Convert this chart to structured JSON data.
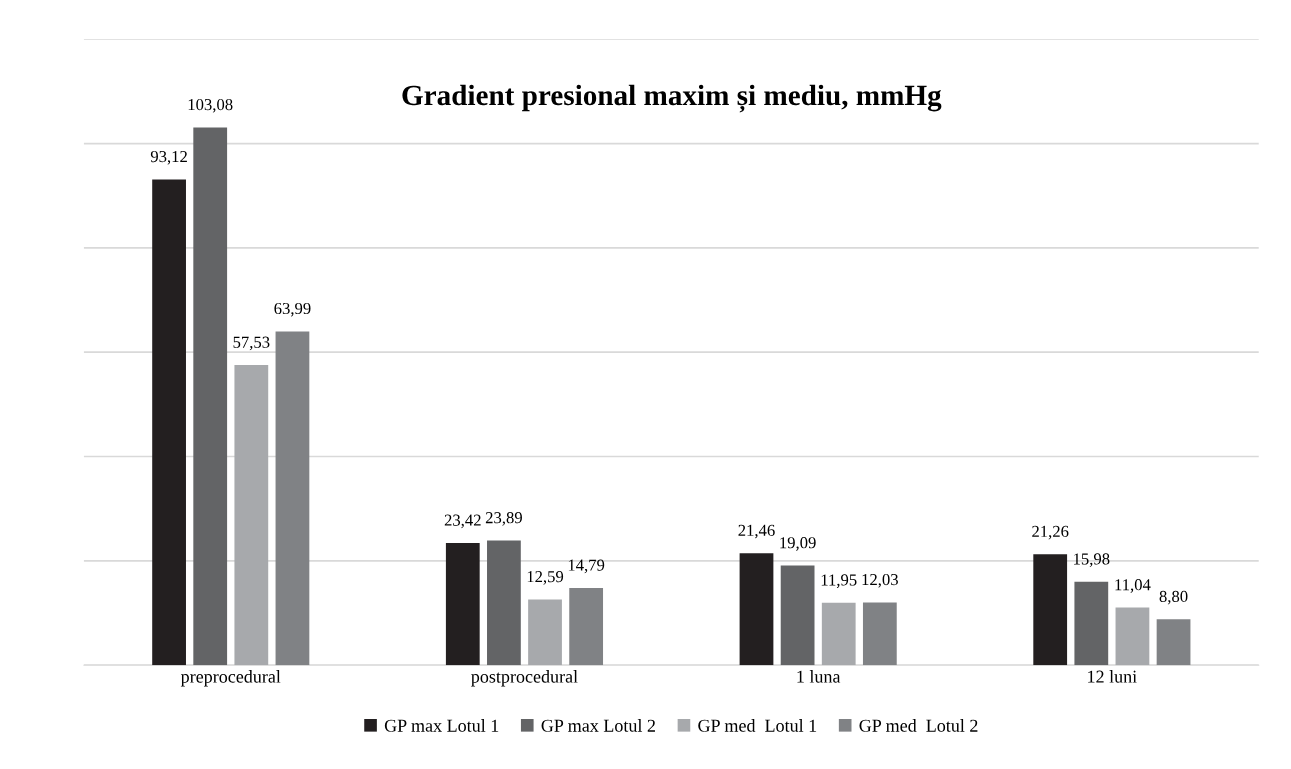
{
  "chart_data": {
    "type": "bar",
    "title": "Gradient presional maxim și mediu, mmHg",
    "categories": [
      "preprocedural",
      "postprocedural",
      "1 luna",
      "12 luni"
    ],
    "series": [
      {
        "name": "GP max Lotul 1",
        "color": "#231f20",
        "values": [
          93.12,
          23.42,
          21.46,
          21.26
        ],
        "value_labels": [
          "93,12",
          "23,42",
          "21,46",
          "21,26"
        ]
      },
      {
        "name": "GP max Lotul 2",
        "color": "#636466",
        "values": [
          103.08,
          23.89,
          19.09,
          15.98
        ],
        "value_labels": [
          "103,08",
          "23,89",
          "19,09",
          "15,98"
        ]
      },
      {
        "name": "GP med  Lotul 1",
        "color": "#a7a9ac",
        "values": [
          57.53,
          12.59,
          11.95,
          11.04
        ],
        "value_labels": [
          "57,53",
          "12,59",
          "11,95",
          "11,04"
        ]
      },
      {
        "name": "GP med  Lotul 2",
        "color": "#808285",
        "values": [
          63.99,
          14.79,
          12.03,
          8.8
        ],
        "value_labels": [
          "63,99",
          "14,79",
          "12,03",
          "8,80"
        ]
      }
    ],
    "ylim": [
      0,
      120
    ],
    "yticks": [
      0,
      20,
      40,
      60,
      80,
      100,
      120
    ],
    "tick_labels": "x",
    "grid": "y",
    "legend": "bottom"
  }
}
